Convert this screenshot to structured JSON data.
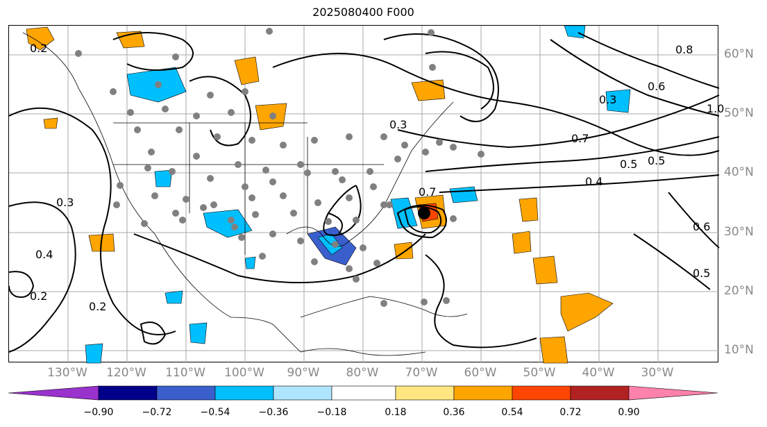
{
  "title": "2025080400 F000",
  "map": {
    "lon_labels": [
      "130°W",
      "120°W",
      "110°W",
      "100°W",
      "90°W",
      "80°W",
      "70°W",
      "60°W",
      "50°W",
      "40°W",
      "30°W"
    ],
    "lat_labels": [
      "60°N",
      "50°N",
      "40°N",
      "30°N",
      "20°N",
      "10°N"
    ],
    "contour_labels": [
      "0.2",
      "0.3",
      "0.4",
      "0.5",
      "0.6",
      "0.7",
      "0.8",
      "1.0"
    ],
    "storm_marker": "black-dot"
  },
  "colorbar": {
    "ticks": [
      "−0.90",
      "−0.72",
      "−0.54",
      "−0.36",
      "−0.18",
      "0.18",
      "0.36",
      "0.54",
      "0.72",
      "0.90"
    ],
    "colors": [
      "#9a32cd",
      "#00008b",
      "#3a5fcd",
      "#00bfff",
      "#aee6ff",
      "#ffffff",
      "#ffe680",
      "#ffa500",
      "#ff4500",
      "#b22222",
      "#ff82ab"
    ]
  }
}
